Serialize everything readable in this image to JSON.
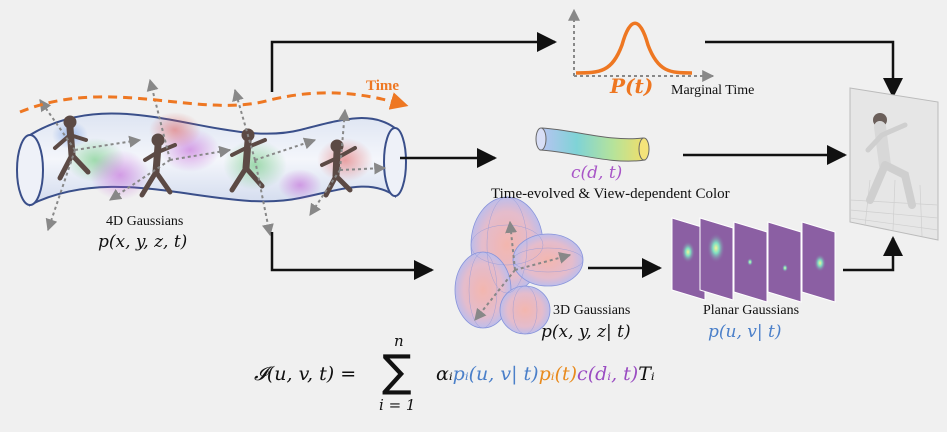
{
  "labels": {
    "time": "Time",
    "marginal_time_math": "P(t)",
    "marginal_time_text": "Marginal Time",
    "color_math": "c(d, t)",
    "color_text": "Time-evolved & View-dependent Color",
    "gaussians_4d_text": "4D Gaussians",
    "gaussians_4d_math": "p(x, y, z, t)",
    "gaussians_3d_text": "3D Gaussians",
    "gaussians_3d_math": "p(x, y, z| t)",
    "planar_text": "Planar Gaussians",
    "planar_math": "p(u, v| t)"
  },
  "formula": {
    "lhs": "𝓘(u, v, t) =",
    "sum_upper": "n",
    "sum_lower": "i = 1",
    "alpha": "αᵢ",
    "term_uv": "pᵢ(u, v| t)",
    "term_t": "pᵢ(t)",
    "term_c": "c(dᵢ, t)",
    "trans": "Tᵢ"
  },
  "colors": {
    "time_orange": "#ee7722",
    "color_purple": "#a855c7",
    "planar_blue": "#4a7fc9",
    "tube_outline": "#3a4f8a",
    "plane_purple": "#8b5fa3"
  },
  "icons": [
    "tube-4d-icon",
    "human-figure-icon",
    "gaussian-curve-icon",
    "color-tube-icon",
    "ellipsoid-3d-icon",
    "planar-gaussian-icon",
    "rendered-image-icon"
  ]
}
